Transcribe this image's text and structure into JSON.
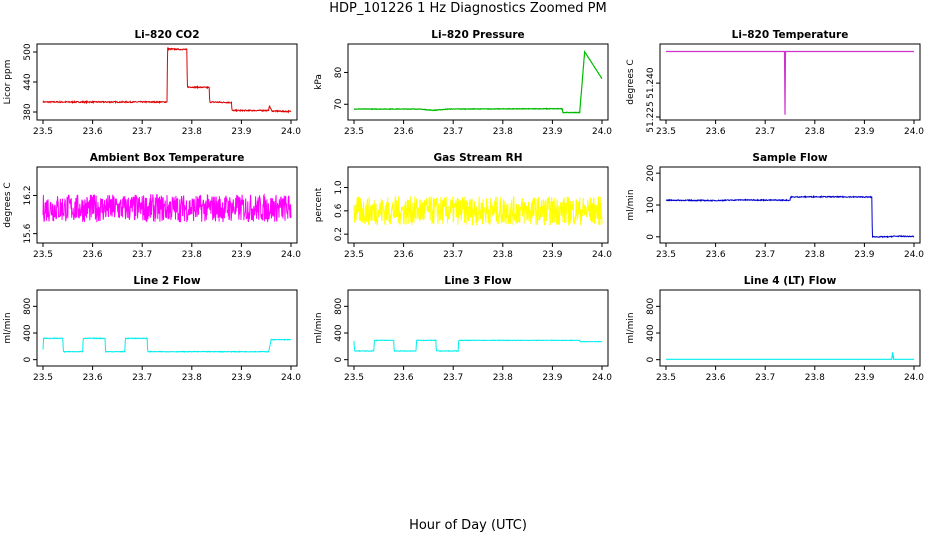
{
  "figure": {
    "title": "HDP_101226  1 Hz Diagnostics Zoomed PM",
    "xlabel": "Hour of Day (UTC)"
  },
  "chart_data": [
    {
      "type": "line",
      "title": "Li–820 CO2",
      "xlabel": "",
      "ylabel": "Licor ppm",
      "xlim": [
        23.5,
        24.0
      ],
      "ylim": [
        370,
        510
      ],
      "xticks": [
        "23.5",
        "23.6",
        "23.7",
        "23.8",
        "23.9",
        "24.0"
      ],
      "yticks": [
        380,
        440,
        500
      ],
      "color": "#dd0000",
      "noise": 1.2,
      "series": [
        {
          "x": [
            23.5,
            23.75,
            23.751,
            23.79,
            23.791,
            23.835,
            23.836,
            23.88,
            23.881,
            23.955,
            23.956,
            23.96,
            23.961,
            24.0
          ],
          "y": [
            400,
            400,
            506,
            505,
            430,
            429,
            400,
            399,
            383,
            383,
            393,
            385,
            382,
            381
          ]
        }
      ]
    },
    {
      "type": "line",
      "title": "Li–820 Pressure",
      "xlabel": "",
      "ylabel": "kPa",
      "xlim": [
        23.5,
        24.0
      ],
      "ylim": [
        66,
        88
      ],
      "xticks": [
        "23.5",
        "23.6",
        "23.7",
        "23.8",
        "23.9",
        "24.0"
      ],
      "yticks": [
        70,
        80
      ],
      "color": "#00bb00",
      "noise": 0.08,
      "series": [
        {
          "x": [
            23.5,
            23.63,
            23.66,
            23.69,
            23.92,
            23.921,
            23.955,
            23.965,
            24.0
          ],
          "y": [
            68.5,
            68.5,
            68.1,
            68.5,
            68.6,
            67.4,
            67.4,
            86.5,
            78
          ]
        }
      ]
    },
    {
      "type": "line",
      "title": "Li–820 Temperature",
      "xlabel": "",
      "ylabel": "degrees C",
      "xlim": [
        23.5,
        24.0
      ],
      "ylim": [
        51.225,
        51.256
      ],
      "xticks": [
        "23.5",
        "23.6",
        "23.7",
        "23.8",
        "23.9",
        "24.0"
      ],
      "yticks": [
        "51.225",
        "51.240"
      ],
      "color": "#cc33cc",
      "noise": 0,
      "series": [
        {
          "x": [
            23.5,
            23.739,
            23.74,
            23.741,
            24.0
          ],
          "y": [
            51.254,
            51.254,
            51.226,
            51.254,
            51.254
          ]
        }
      ]
    },
    {
      "type": "line",
      "title": "Ambient Box Temperature",
      "xlabel": "",
      "ylabel": "degrees C",
      "xlim": [
        23.5,
        24.0
      ],
      "ylim": [
        15.5,
        16.6
      ],
      "xticks": [
        "23.5",
        "23.6",
        "23.7",
        "23.8",
        "23.9",
        "24.0"
      ],
      "yticks": [
        "15.6",
        "16.2"
      ],
      "color": "#ff00ff",
      "noise": 0.22,
      "series": [
        {
          "x": [
            23.5,
            24.0
          ],
          "y": [
            16.0,
            16.0
          ]
        }
      ]
    },
    {
      "type": "line",
      "title": "Gas Stream RH",
      "xlabel": "",
      "ylabel": "percent",
      "xlim": [
        23.5,
        24.0
      ],
      "ylim": [
        0.1,
        1.3
      ],
      "xticks": [
        "23.5",
        "23.6",
        "23.7",
        "23.8",
        "23.9",
        "24.0"
      ],
      "yticks": [
        "0.2",
        "0.6",
        "1.0"
      ],
      "color": "#ffff00",
      "noise": 0.25,
      "series": [
        {
          "x": [
            23.5,
            24.0
          ],
          "y": [
            0.6,
            0.6
          ]
        }
      ]
    },
    {
      "type": "line",
      "title": "Sample Flow",
      "xlabel": "",
      "ylabel": "ml/min",
      "xlim": [
        23.5,
        24.0
      ],
      "ylim": [
        -10,
        210
      ],
      "xticks": [
        "23.5",
        "23.6",
        "23.7",
        "23.8",
        "23.9",
        "24.0"
      ],
      "yticks": [
        0,
        100,
        200
      ],
      "color": "#0000cc",
      "noise": 1.5,
      "series": [
        {
          "x": [
            23.5,
            23.6,
            23.65,
            23.75,
            23.751,
            23.8,
            23.915,
            23.916,
            23.95,
            23.96,
            24.0
          ],
          "y": [
            115,
            114,
            116,
            115,
            125,
            126,
            125,
            0,
            0,
            2,
            1
          ]
        }
      ]
    },
    {
      "type": "line",
      "title": "Line 2 Flow",
      "xlabel": "",
      "ylabel": "ml/min",
      "xlim": [
        23.5,
        24.0
      ],
      "ylim": [
        -50,
        1000
      ],
      "xticks": [
        "23.5",
        "23.6",
        "23.7",
        "23.8",
        "23.9",
        "24.0"
      ],
      "yticks": [
        0,
        400,
        800
      ],
      "color": "#00eeee",
      "noise": 5,
      "series": [
        {
          "x": [
            23.5,
            23.501,
            23.54,
            23.541,
            23.58,
            23.581,
            23.625,
            23.626,
            23.665,
            23.666,
            23.71,
            23.711,
            23.955,
            23.96,
            24.0
          ],
          "y": [
            150,
            320,
            320,
            120,
            120,
            320,
            320,
            120,
            120,
            320,
            320,
            120,
            120,
            300,
            300
          ]
        }
      ]
    },
    {
      "type": "line",
      "title": "Line 3 Flow",
      "xlabel": "",
      "ylabel": "ml/min",
      "xlim": [
        23.5,
        24.0
      ],
      "ylim": [
        -50,
        1000
      ],
      "xticks": [
        "23.5",
        "23.6",
        "23.7",
        "23.8",
        "23.9",
        "24.0"
      ],
      "yticks": [
        0,
        400,
        800
      ],
      "color": "#00eeee",
      "noise": 4,
      "series": [
        {
          "x": [
            23.5,
            23.501,
            23.54,
            23.541,
            23.58,
            23.581,
            23.625,
            23.626,
            23.665,
            23.666,
            23.71,
            23.711,
            23.955,
            23.956,
            24.0
          ],
          "y": [
            280,
            130,
            130,
            290,
            290,
            130,
            130,
            290,
            290,
            130,
            130,
            290,
            290,
            270,
            270
          ]
        }
      ]
    },
    {
      "type": "line",
      "title": "Line 4 (LT) Flow",
      "xlabel": "",
      "ylabel": "ml/min",
      "xlim": [
        23.5,
        24.0
      ],
      "ylim": [
        -50,
        1000
      ],
      "xticks": [
        "23.5",
        "23.6",
        "23.7",
        "23.8",
        "23.9",
        "24.0"
      ],
      "yticks": [
        0,
        400,
        800
      ],
      "color": "#00eeee",
      "noise": 0,
      "series": [
        {
          "x": [
            23.5,
            23.955,
            23.957,
            23.959,
            23.962,
            24.0
          ],
          "y": [
            5,
            5,
            110,
            5,
            5,
            5
          ]
        }
      ]
    }
  ]
}
